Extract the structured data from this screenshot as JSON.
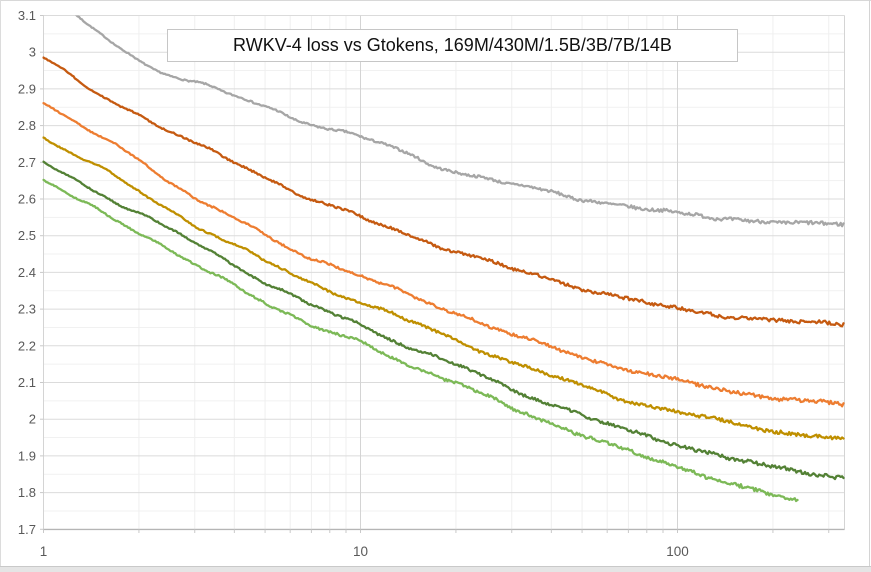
{
  "chart_data": {
    "type": "line",
    "title": "RWKV-4 loss vs Gtokens, 169M/430M/1.5B/3B/7B/14B",
    "xlabel": "",
    "ylabel": "",
    "legend": "none",
    "grid": {
      "major": true,
      "minor": true
    },
    "x_axis": {
      "scale": "log",
      "range": [
        1,
        336
      ],
      "ticks": [
        "1",
        "10",
        "100"
      ],
      "tick_values": [
        1,
        10,
        100
      ],
      "minor_gridlines": [
        2,
        3,
        4,
        5,
        6,
        7,
        8,
        9,
        20,
        30,
        40,
        50,
        60,
        70,
        80,
        90,
        200,
        300
      ]
    },
    "y_axis": {
      "range": [
        1.7,
        3.1
      ],
      "major_step": 0.1,
      "minor_step": 0.05,
      "ticks": [
        "3.1",
        "3",
        "2.9",
        "2.8",
        "2.7",
        "2.6",
        "2.5",
        "2.4",
        "2.3",
        "2.2",
        "2.1",
        "2",
        "1.9",
        "1.8",
        "1.7"
      ],
      "tick_values": [
        3.1,
        3.0,
        2.9,
        2.8,
        2.7,
        2.6,
        2.5,
        2.4,
        2.3,
        2.2,
        2.1,
        2.0,
        1.9,
        1.8,
        1.7
      ]
    },
    "series": [
      {
        "name": "169M",
        "color": "#A6A6A6",
        "points": [
          [
            1.1,
            3.135
          ],
          [
            1.3,
            3.09
          ],
          [
            1.5,
            3.05
          ],
          [
            2,
            2.975
          ],
          [
            2.5,
            2.94
          ],
          [
            3,
            2.92
          ],
          [
            4,
            2.88
          ],
          [
            5,
            2.85
          ],
          [
            7,
            2.805
          ],
          [
            10,
            2.77
          ],
          [
            13,
            2.735
          ],
          [
            16,
            2.7
          ],
          [
            20,
            2.675
          ],
          [
            30,
            2.64
          ],
          [
            50,
            2.6
          ],
          [
            70,
            2.58
          ],
          [
            100,
            2.56
          ],
          [
            150,
            2.545
          ],
          [
            200,
            2.538
          ],
          [
            260,
            2.532
          ],
          [
            334,
            2.53
          ]
        ]
      },
      {
        "name": "430M",
        "color": "#C55A11",
        "points": [
          [
            1,
            2.985
          ],
          [
            1.3,
            2.915
          ],
          [
            1.5,
            2.885
          ],
          [
            2,
            2.83
          ],
          [
            3,
            2.75
          ],
          [
            4,
            2.7
          ],
          [
            5,
            2.66
          ],
          [
            7,
            2.6
          ],
          [
            10,
            2.55
          ],
          [
            15,
            2.495
          ],
          [
            20,
            2.457
          ],
          [
            30,
            2.41
          ],
          [
            50,
            2.357
          ],
          [
            70,
            2.327
          ],
          [
            100,
            2.3
          ],
          [
            150,
            2.28
          ],
          [
            200,
            2.27
          ],
          [
            260,
            2.263
          ],
          [
            334,
            2.258
          ]
        ]
      },
      {
        "name": "1.5B",
        "color": "#ED7D31",
        "points": [
          [
            1,
            2.86
          ],
          [
            1.3,
            2.8
          ],
          [
            1.5,
            2.77
          ],
          [
            2,
            2.71
          ],
          [
            3,
            2.6
          ],
          [
            4,
            2.548
          ],
          [
            5,
            2.5
          ],
          [
            7,
            2.44
          ],
          [
            10,
            2.39
          ],
          [
            15,
            2.33
          ],
          [
            20,
            2.29
          ],
          [
            30,
            2.23
          ],
          [
            50,
            2.17
          ],
          [
            70,
            2.135
          ],
          [
            100,
            2.105
          ],
          [
            150,
            2.075
          ],
          [
            200,
            2.058
          ],
          [
            260,
            2.048
          ],
          [
            334,
            2.04
          ]
        ]
      },
      {
        "name": "3B",
        "color": "#BF8F00",
        "points": [
          [
            1,
            2.77
          ],
          [
            1.3,
            2.715
          ],
          [
            1.5,
            2.685
          ],
          [
            2,
            2.62
          ],
          [
            3,
            2.53
          ],
          [
            4,
            2.475
          ],
          [
            5,
            2.43
          ],
          [
            7,
            2.37
          ],
          [
            10,
            2.32
          ],
          [
            15,
            2.26
          ],
          [
            20,
            2.215
          ],
          [
            30,
            2.155
          ],
          [
            50,
            2.09
          ],
          [
            70,
            2.05
          ],
          [
            100,
            2.02
          ],
          [
            150,
            1.988
          ],
          [
            200,
            1.968
          ],
          [
            260,
            1.955
          ],
          [
            334,
            1.945
          ]
        ]
      },
      {
        "name": "7B",
        "color": "#538135",
        "points": [
          [
            1,
            2.7
          ],
          [
            1.3,
            2.645
          ],
          [
            1.5,
            2.617
          ],
          [
            2,
            2.562
          ],
          [
            3,
            2.48
          ],
          [
            4,
            2.42
          ],
          [
            5,
            2.375
          ],
          [
            7,
            2.31
          ],
          [
            10,
            2.255
          ],
          [
            15,
            2.19
          ],
          [
            20,
            2.15
          ],
          [
            30,
            2.08
          ],
          [
            50,
            2.012
          ],
          [
            70,
            1.966
          ],
          [
            100,
            1.93
          ],
          [
            150,
            1.893
          ],
          [
            200,
            1.868
          ],
          [
            260,
            1.852
          ],
          [
            334,
            1.84
          ]
        ]
      },
      {
        "name": "14B",
        "color": "#7CB957",
        "points": [
          [
            1,
            2.65
          ],
          [
            1.3,
            2.595
          ],
          [
            1.5,
            2.567
          ],
          [
            2,
            2.512
          ],
          [
            3,
            2.42
          ],
          [
            4,
            2.363
          ],
          [
            5,
            2.32
          ],
          [
            7,
            2.255
          ],
          [
            10,
            2.208
          ],
          [
            15,
            2.14
          ],
          [
            20,
            2.1
          ],
          [
            30,
            2.03
          ],
          [
            50,
            1.958
          ],
          [
            70,
            1.912
          ],
          [
            100,
            1.87
          ],
          [
            150,
            1.822
          ],
          [
            200,
            1.792
          ],
          [
            239,
            1.778
          ]
        ]
      }
    ],
    "style": {
      "major_grid_color": "#DBDBDB",
      "minor_grid_color": "#F1F1F1",
      "axis_line_color": "#B5B5B5",
      "tick_label_color": "#595959",
      "background": "#FFFFFF"
    }
  }
}
